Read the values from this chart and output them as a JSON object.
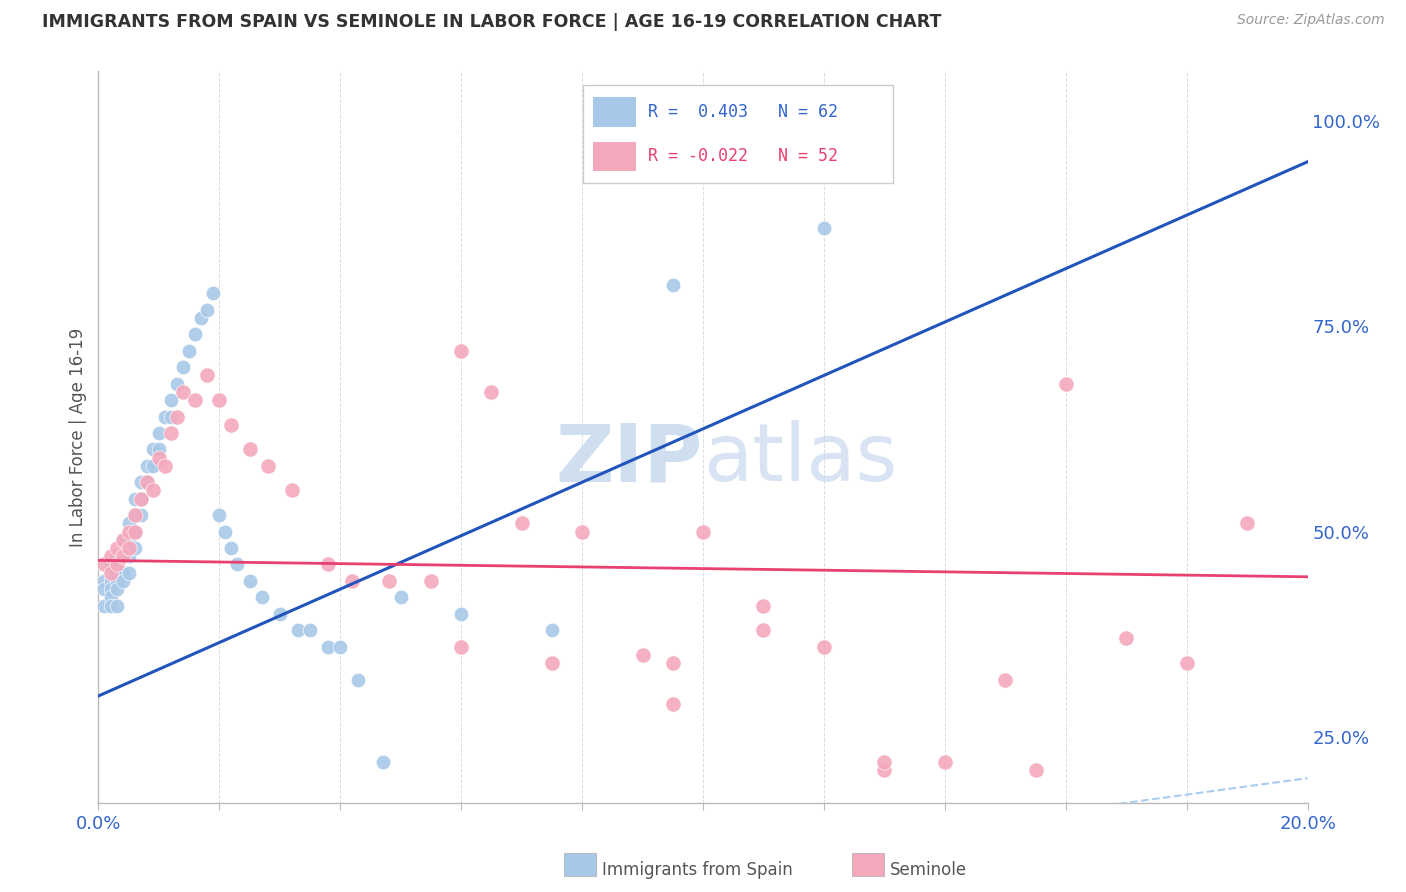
{
  "title": "IMMIGRANTS FROM SPAIN VS SEMINOLE IN LABOR FORCE | AGE 16-19 CORRELATION CHART",
  "source": "Source: ZipAtlas.com",
  "ylabel": "In Labor Force | Age 16-19",
  "blue_r": 0.403,
  "blue_n": 62,
  "pink_r": -0.022,
  "pink_n": 52,
  "xlim": [
    0.0,
    0.2
  ],
  "ylim": [
    0.17,
    1.06
  ],
  "right_yticks": [
    0.25,
    0.5,
    0.75,
    1.0
  ],
  "right_yticklabels": [
    "25.0%",
    "50.0%",
    "75.0%",
    "100.0%"
  ],
  "xticks": [
    0.0,
    0.02,
    0.04,
    0.06,
    0.08,
    0.1,
    0.12,
    0.14,
    0.16,
    0.18,
    0.2
  ],
  "blue_color": "#A8C8E8",
  "pink_color": "#F4A8BC",
  "blue_line_color": "#2255BB",
  "pink_line_color": "#E84070",
  "diag_line_color": "#AACCEE",
  "watermark_color": "#D0DFF0",
  "blue_line_x0": 0.0,
  "blue_line_y0": 0.3,
  "blue_line_x1": 0.2,
  "blue_line_y1": 0.95,
  "pink_line_x0": 0.0,
  "pink_line_y0": 0.465,
  "pink_line_x1": 0.2,
  "pink_line_y1": 0.445,
  "blue_x": [
    0.001,
    0.001,
    0.001,
    0.002,
    0.002,
    0.002,
    0.002,
    0.002,
    0.003,
    0.003,
    0.003,
    0.003,
    0.003,
    0.004,
    0.004,
    0.004,
    0.004,
    0.005,
    0.005,
    0.005,
    0.005,
    0.006,
    0.006,
    0.006,
    0.006,
    0.007,
    0.007,
    0.007,
    0.008,
    0.008,
    0.009,
    0.009,
    0.01,
    0.01,
    0.011,
    0.012,
    0.012,
    0.013,
    0.014,
    0.015,
    0.016,
    0.017,
    0.018,
    0.019,
    0.02,
    0.021,
    0.022,
    0.023,
    0.025,
    0.027,
    0.03,
    0.033,
    0.035,
    0.038,
    0.04,
    0.043,
    0.047,
    0.05,
    0.06,
    0.075,
    0.095,
    0.12
  ],
  "blue_y": [
    0.44,
    0.43,
    0.41,
    0.46,
    0.44,
    0.43,
    0.42,
    0.41,
    0.47,
    0.45,
    0.44,
    0.43,
    0.41,
    0.49,
    0.47,
    0.45,
    0.44,
    0.51,
    0.49,
    0.47,
    0.45,
    0.54,
    0.52,
    0.5,
    0.48,
    0.56,
    0.54,
    0.52,
    0.58,
    0.56,
    0.6,
    0.58,
    0.62,
    0.6,
    0.64,
    0.66,
    0.64,
    0.68,
    0.7,
    0.72,
    0.74,
    0.76,
    0.77,
    0.79,
    0.52,
    0.5,
    0.48,
    0.46,
    0.44,
    0.42,
    0.4,
    0.38,
    0.38,
    0.36,
    0.36,
    0.32,
    0.22,
    0.42,
    0.4,
    0.38,
    0.8,
    0.87
  ],
  "pink_x": [
    0.001,
    0.002,
    0.002,
    0.003,
    0.003,
    0.004,
    0.004,
    0.005,
    0.005,
    0.006,
    0.006,
    0.007,
    0.008,
    0.009,
    0.01,
    0.011,
    0.012,
    0.013,
    0.014,
    0.016,
    0.018,
    0.02,
    0.022,
    0.025,
    0.028,
    0.032,
    0.038,
    0.042,
    0.048,
    0.055,
    0.06,
    0.065,
    0.07,
    0.08,
    0.09,
    0.095,
    0.1,
    0.11,
    0.12,
    0.13,
    0.14,
    0.15,
    0.16,
    0.17,
    0.18,
    0.19,
    0.06,
    0.075,
    0.095,
    0.11,
    0.13,
    0.155
  ],
  "pink_y": [
    0.46,
    0.47,
    0.45,
    0.48,
    0.46,
    0.49,
    0.47,
    0.5,
    0.48,
    0.52,
    0.5,
    0.54,
    0.56,
    0.55,
    0.59,
    0.58,
    0.62,
    0.64,
    0.67,
    0.66,
    0.69,
    0.66,
    0.63,
    0.6,
    0.58,
    0.55,
    0.46,
    0.44,
    0.44,
    0.44,
    0.72,
    0.67,
    0.51,
    0.5,
    0.35,
    0.34,
    0.5,
    0.41,
    0.36,
    0.21,
    0.22,
    0.32,
    0.68,
    0.37,
    0.34,
    0.51,
    0.36,
    0.34,
    0.29,
    0.38,
    0.22,
    0.21
  ]
}
